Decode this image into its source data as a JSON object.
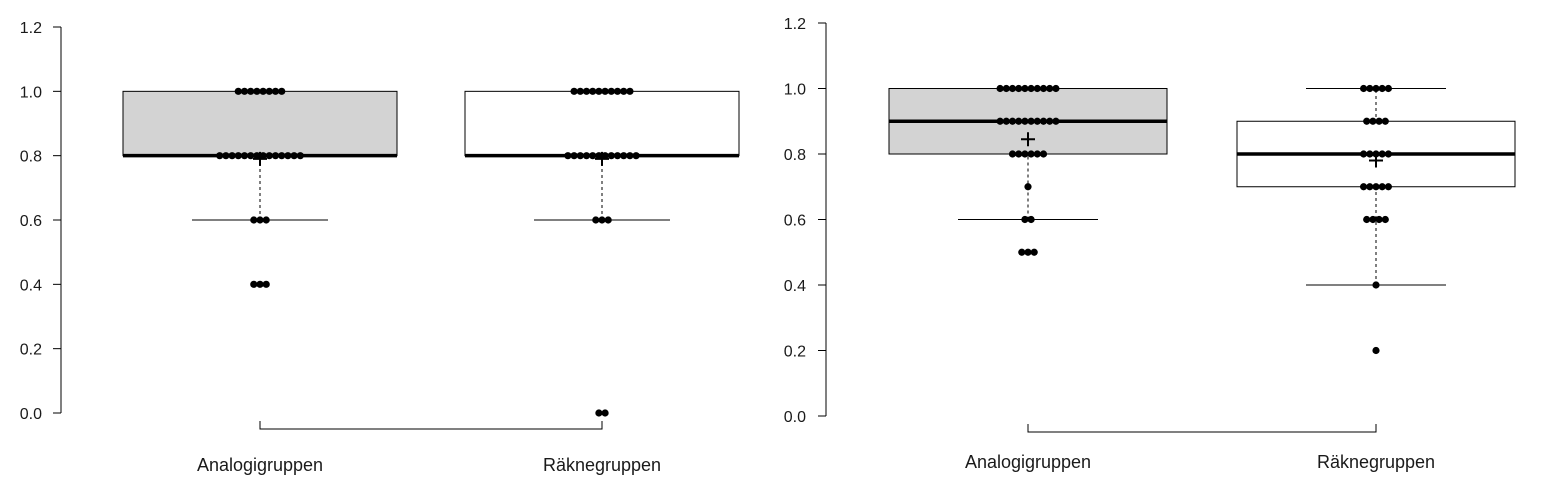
{
  "chart_data": [
    {
      "type": "box",
      "title": "",
      "xlabel": "",
      "ylabel": "",
      "ylim": [
        0,
        1.2
      ],
      "yticks": [
        "0.0",
        "0.2",
        "0.4",
        "0.6",
        "0.8",
        "1.0",
        "1.2"
      ],
      "categories": [
        "Analogigruppen",
        "Räknegruppen"
      ],
      "fill_colors": [
        "#d3d3d3",
        "#ffffff"
      ],
      "boxes": [
        {
          "q1": 0.8,
          "median": 0.8,
          "q3": 1.0,
          "whisker_low": 0.6,
          "whisker_high": 1.0,
          "mean": 0.79
        },
        {
          "q1": 0.8,
          "median": 0.8,
          "q3": 1.0,
          "whisker_low": 0.6,
          "whisker_high": 1.0,
          "mean": 0.79
        }
      ],
      "points": [
        [
          {
            "value": 1.0,
            "count": 8
          },
          {
            "value": 0.8,
            "count": 14
          },
          {
            "value": 0.6,
            "count": 3
          },
          {
            "value": 0.4,
            "count": 3
          }
        ],
        [
          {
            "value": 1.0,
            "count": 10
          },
          {
            "value": 0.8,
            "count": 12
          },
          {
            "value": 0.6,
            "count": 3
          },
          {
            "value": 0.0,
            "count": 2
          }
        ]
      ]
    },
    {
      "type": "box",
      "title": "",
      "xlabel": "",
      "ylabel": "",
      "ylim": [
        0,
        1.2
      ],
      "yticks": [
        "0.0",
        "0.2",
        "0.4",
        "0.6",
        "0.8",
        "1.0",
        "1.2"
      ],
      "categories": [
        "Analogigruppen",
        "Räknegruppen"
      ],
      "fill_colors": [
        "#d3d3d3",
        "#ffffff"
      ],
      "boxes": [
        {
          "q1": 0.8,
          "median": 0.9,
          "q3": 1.0,
          "whisker_low": 0.6,
          "whisker_high": 1.0,
          "mean": 0.845
        },
        {
          "q1": 0.7,
          "median": 0.8,
          "q3": 0.9,
          "whisker_low": 0.4,
          "whisker_high": 1.0,
          "mean": 0.78
        }
      ],
      "points": [
        [
          {
            "value": 1.0,
            "count": 10
          },
          {
            "value": 0.9,
            "count": 10
          },
          {
            "value": 0.8,
            "count": 6
          },
          {
            "value": 0.7,
            "count": 1
          },
          {
            "value": 0.6,
            "count": 2
          },
          {
            "value": 0.5,
            "count": 3
          }
        ],
        [
          {
            "value": 1.0,
            "count": 5
          },
          {
            "value": 0.9,
            "count": 4
          },
          {
            "value": 0.8,
            "count": 5
          },
          {
            "value": 0.7,
            "count": 5
          },
          {
            "value": 0.6,
            "count": 4
          },
          {
            "value": 0.4,
            "count": 1
          },
          {
            "value": 0.2,
            "count": 1
          }
        ]
      ]
    }
  ]
}
